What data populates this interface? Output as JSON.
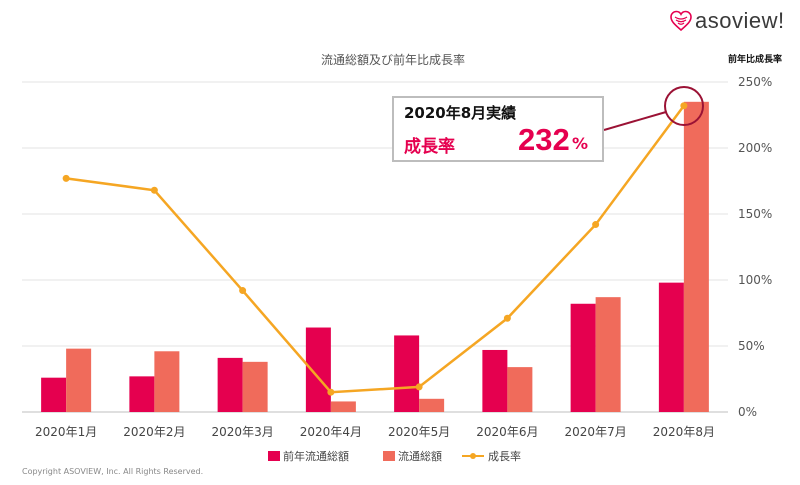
{
  "brand": {
    "name": "asoview!",
    "logo_color": "#e5004f"
  },
  "copyright": "Copyright ASOVIEW, Inc. All Rights Reserved.",
  "callout": {
    "title": "2020年8月実績",
    "label": "成長率",
    "value": "232",
    "unit": "%"
  },
  "chart_data": {
    "type": "bar",
    "title": "流通総額及び前年比成長率",
    "categories": [
      "2020年1月",
      "2020年2月",
      "2020年3月",
      "2020年4月",
      "2020年5月",
      "2020年6月",
      "2020年7月",
      "2020年8月"
    ],
    "series": [
      {
        "name": "前年流通総額",
        "kind": "bar",
        "color": "#e5004f",
        "values": [
          26,
          27,
          41,
          64,
          58,
          47,
          82,
          98
        ]
      },
      {
        "name": "流通総額",
        "kind": "bar",
        "color": "#f06b5b",
        "values": [
          48,
          46,
          38,
          8,
          10,
          34,
          87,
          235
        ]
      },
      {
        "name": "成長率",
        "kind": "line",
        "color": "#f5a623",
        "axis": "right",
        "values": [
          177,
          168,
          92,
          15,
          19,
          71,
          142,
          232
        ]
      }
    ],
    "right_axis": {
      "label": "前年比成長率",
      "ticks": [
        "0%",
        "50%",
        "100%",
        "150%",
        "200%",
        "250%"
      ],
      "range": [
        0,
        250
      ]
    },
    "left_axis": {
      "range": [
        0,
        250
      ],
      "tick_labels_visible": false
    },
    "grid": true,
    "legend": "bottom"
  }
}
